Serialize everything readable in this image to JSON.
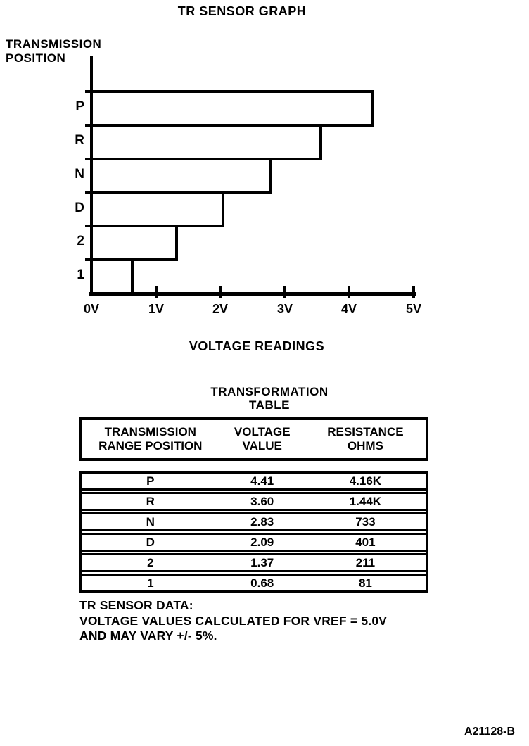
{
  "title": "TR SENSOR GRAPH",
  "chart_data": {
    "type": "bar",
    "orientation": "horizontal",
    "title": "TR SENSOR GRAPH",
    "ylabel": "TRANSMISSION POSITION",
    "ylabel_lines": [
      "TRANSMISSION",
      "POSITION"
    ],
    "xlabel": "VOLTAGE READINGS",
    "categories": [
      "P",
      "R",
      "N",
      "D",
      "2",
      "1"
    ],
    "values": [
      4.41,
      3.6,
      2.83,
      2.09,
      1.37,
      0.68
    ],
    "x_ticks": [
      "0V",
      "1V",
      "2V",
      "3V",
      "4V",
      "5V"
    ],
    "xlim": [
      0,
      5
    ],
    "grid": false,
    "bar_fill": "#ffffff",
    "bar_border": "#000000"
  },
  "table": {
    "title_lines": [
      "TRANSFORMATION",
      "TABLE"
    ],
    "columns": [
      {
        "lines": [
          "TRANSMISSION",
          "RANGE POSITION"
        ]
      },
      {
        "lines": [
          "VOLTAGE",
          "VALUE"
        ]
      },
      {
        "lines": [
          "RESISTANCE",
          "OHMS"
        ]
      }
    ],
    "rows": [
      [
        "P",
        "4.41",
        "4.16K"
      ],
      [
        "R",
        "3.60",
        "1.44K"
      ],
      [
        "N",
        "2.83",
        "733"
      ],
      [
        "D",
        "2.09",
        "401"
      ],
      [
        "2",
        "1.37",
        "211"
      ],
      [
        "1",
        "0.68",
        "81"
      ]
    ]
  },
  "notes": {
    "lines": [
      "TR SENSOR DATA:",
      "VOLTAGE VALUES CALCULATED FOR VREF = 5.0V",
      "AND MAY VARY +/- 5%."
    ]
  },
  "figure_code": "A21128-B",
  "colors": {
    "ink": "#000000",
    "paper": "#ffffff"
  }
}
